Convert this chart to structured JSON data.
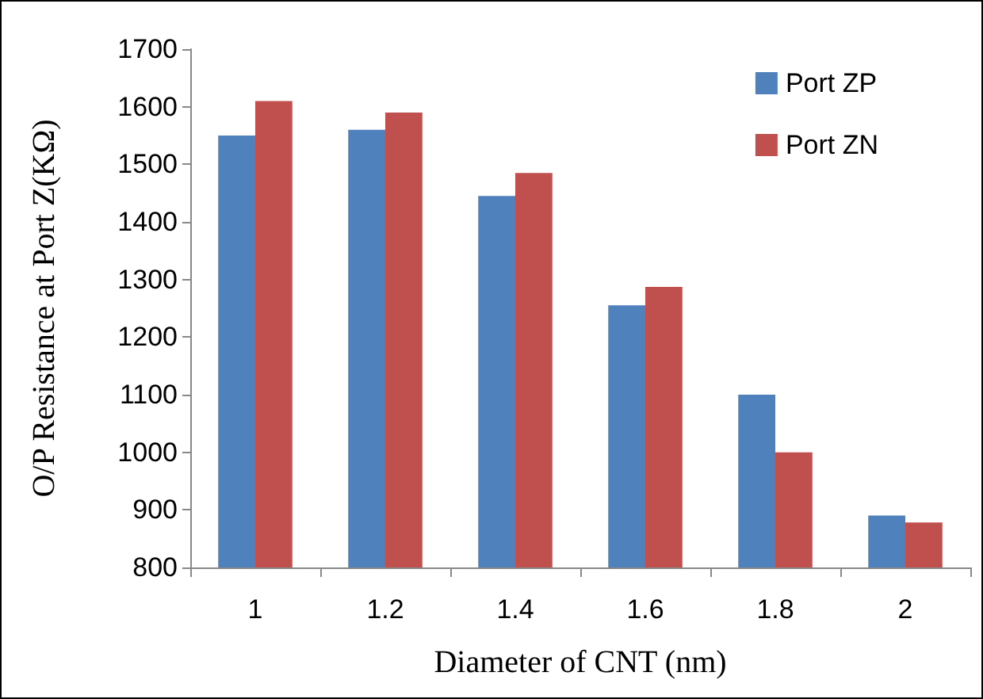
{
  "chart_data": {
    "type": "bar",
    "xlabel": "Diameter of CNT (nm)",
    "ylabel": "O/P Resistance at Port Z(KΩ)",
    "categories": [
      "1",
      "1.2",
      "1.4",
      "1.6",
      "1.8",
      "2"
    ],
    "series": [
      {
        "name": "Port ZP",
        "color": "#4f81bd",
        "values": [
          1550,
          1560,
          1445,
          1255,
          1100,
          890
        ]
      },
      {
        "name": "Port ZN",
        "color": "#c0504d",
        "values": [
          1610,
          1590,
          1485,
          1287,
          1000,
          878
        ]
      }
    ],
    "ylim": [
      800,
      1700
    ],
    "yticks": [
      800,
      900,
      1000,
      1100,
      1200,
      1300,
      1400,
      1500,
      1600,
      1700
    ],
    "grid": false,
    "legend": "top right"
  }
}
